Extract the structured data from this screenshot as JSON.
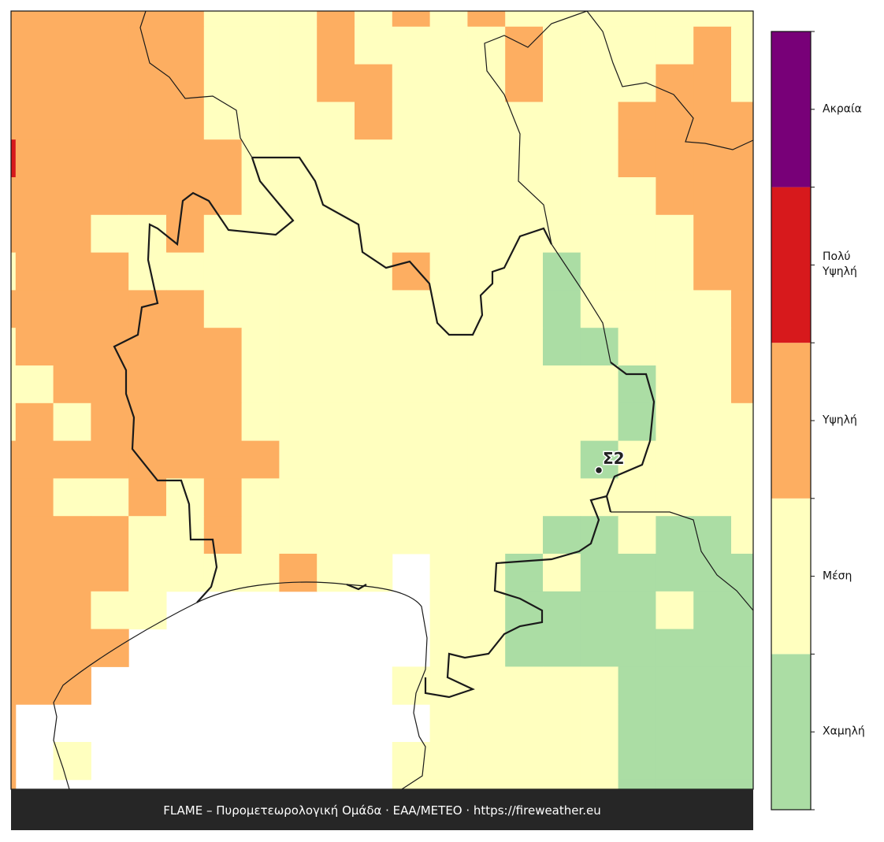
{
  "map": {
    "categories": [
      "Χαμηλή",
      "Μέση",
      "Υψηλή",
      "Πολύ Υψηλή",
      "Ακραία"
    ],
    "colors": [
      "#abdda4",
      "#ffffbf",
      "#fdae61",
      "#d7191c",
      "#780078"
    ],
    "grid": [
      [
        2,
        2,
        2,
        2,
        2,
        2,
        1,
        1,
        1,
        2,
        1,
        2,
        1,
        2,
        1,
        1,
        1,
        1,
        1,
        1,
        1
      ],
      [
        2,
        2,
        2,
        2,
        2,
        2,
        1,
        1,
        1,
        2,
        1,
        1,
        1,
        1,
        2,
        1,
        1,
        1,
        1,
        2,
        1
      ],
      [
        2,
        2,
        2,
        2,
        2,
        2,
        1,
        1,
        1,
        2,
        2,
        1,
        1,
        1,
        2,
        1,
        1,
        1,
        2,
        2,
        1
      ],
      [
        2,
        2,
        2,
        2,
        2,
        2,
        1,
        1,
        1,
        1,
        2,
        1,
        1,
        1,
        1,
        1,
        1,
        2,
        2,
        2,
        2
      ],
      [
        3,
        2,
        2,
        2,
        2,
        2,
        2,
        1,
        1,
        1,
        1,
        1,
        1,
        1,
        1,
        1,
        1,
        2,
        2,
        2,
        2
      ],
      [
        2,
        2,
        2,
        2,
        2,
        2,
        2,
        1,
        1,
        1,
        1,
        1,
        1,
        1,
        1,
        1,
        1,
        1,
        2,
        2,
        2
      ],
      [
        2,
        2,
        2,
        1,
        1,
        2,
        1,
        1,
        1,
        1,
        1,
        1,
        1,
        1,
        1,
        1,
        1,
        1,
        1,
        2,
        2
      ],
      [
        1,
        2,
        2,
        2,
        1,
        1,
        1,
        1,
        1,
        1,
        1,
        2,
        1,
        1,
        1,
        0,
        1,
        1,
        1,
        2,
        2
      ],
      [
        2,
        2,
        2,
        2,
        2,
        2,
        1,
        1,
        1,
        1,
        1,
        1,
        1,
        1,
        1,
        0,
        1,
        1,
        1,
        1,
        2
      ],
      [
        1,
        2,
        2,
        2,
        2,
        2,
        2,
        1,
        1,
        1,
        1,
        1,
        1,
        1,
        1,
        0,
        0,
        1,
        1,
        1,
        2
      ],
      [
        1,
        1,
        2,
        2,
        2,
        2,
        2,
        1,
        1,
        1,
        1,
        1,
        1,
        1,
        1,
        1,
        1,
        0,
        1,
        1,
        2
      ],
      [
        1,
        2,
        1,
        2,
        2,
        2,
        2,
        1,
        1,
        1,
        1,
        1,
        1,
        1,
        1,
        1,
        1,
        0,
        1,
        1,
        1
      ],
      [
        2,
        2,
        2,
        2,
        2,
        2,
        2,
        2,
        1,
        1,
        1,
        1,
        1,
        1,
        1,
        1,
        0,
        1,
        1,
        1,
        1
      ],
      [
        2,
        2,
        1,
        1,
        2,
        1,
        2,
        1,
        1,
        1,
        1,
        1,
        1,
        1,
        1,
        1,
        1,
        1,
        1,
        1,
        1
      ],
      [
        2,
        2,
        2,
        2,
        1,
        1,
        2,
        1,
        1,
        1,
        1,
        1,
        1,
        1,
        1,
        0,
        0,
        1,
        0,
        0,
        1
      ],
      [
        2,
        2,
        2,
        2,
        1,
        1,
        1,
        1,
        2,
        1,
        1,
        null,
        1,
        1,
        0,
        1,
        0,
        0,
        0,
        0,
        0
      ],
      [
        2,
        2,
        2,
        1,
        1,
        null,
        null,
        null,
        null,
        null,
        null,
        null,
        1,
        1,
        0,
        0,
        0,
        0,
        1,
        0,
        0
      ],
      [
        2,
        2,
        2,
        2,
        null,
        null,
        null,
        null,
        null,
        null,
        null,
        null,
        1,
        1,
        0,
        0,
        0,
        0,
        0,
        0,
        0
      ],
      [
        2,
        2,
        2,
        null,
        null,
        null,
        null,
        null,
        null,
        null,
        null,
        1,
        1,
        1,
        1,
        1,
        1,
        0,
        0,
        0,
        0
      ],
      [
        2,
        null,
        null,
        null,
        null,
        null,
        null,
        null,
        null,
        null,
        null,
        null,
        1,
        1,
        1,
        1,
        1,
        0,
        0,
        0,
        0
      ],
      [
        2,
        null,
        1,
        null,
        null,
        null,
        null,
        null,
        null,
        null,
        null,
        1,
        1,
        1,
        1,
        1,
        1,
        0,
        0,
        0,
        0
      ],
      [
        2,
        null,
        null,
        null,
        null,
        null,
        null,
        null,
        null,
        null,
        null,
        1,
        1,
        1,
        1,
        1,
        1,
        0,
        0,
        0,
        0
      ]
    ],
    "station": {
      "label": "Σ2"
    }
  },
  "footer": "FLAME – Πυρομετεωρολογική Ομάδα · ΕΑΑ/METEO · https://fireweather.eu"
}
